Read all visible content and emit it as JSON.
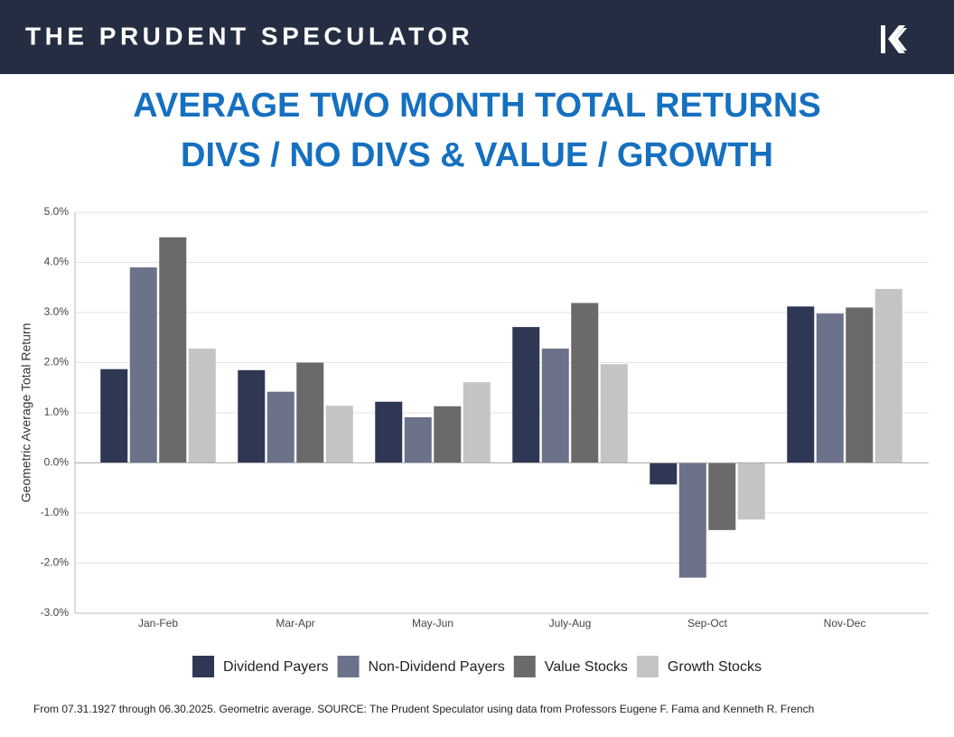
{
  "header": {
    "title": "THE PRUDENT SPECULATOR"
  },
  "chart_data": {
    "type": "bar",
    "title": [
      "AVERAGE TWO MONTH TOTAL RETURNS",
      "DIVS / NO DIVS & VALUE / GROWTH"
    ],
    "y_label": "Geometric Average Total Return",
    "categories": [
      "Jan-Feb",
      "Mar-Apr",
      "May-Jun",
      "July-Aug",
      "Sep-Oct",
      "Nov-Dec"
    ],
    "series": [
      {
        "name": "Dividend Payers",
        "color": "#2e3754",
        "values": [
          1.87,
          1.85,
          1.22,
          2.71,
          -0.43,
          3.12
        ]
      },
      {
        "name": "Non-Dividend Payers",
        "color": "#6b7289",
        "values": [
          3.9,
          1.42,
          0.91,
          2.28,
          -2.29,
          2.98
        ]
      },
      {
        "name": "Value Stocks",
        "color": "#6a6a6a",
        "values": [
          4.5,
          2.0,
          1.13,
          3.19,
          -1.34,
          3.1
        ]
      },
      {
        "name": "Growth Stocks",
        "color": "#c4c4c4",
        "values": [
          2.28,
          1.14,
          1.61,
          1.97,
          -1.13,
          3.47
        ]
      }
    ],
    "ylim": [
      -3,
      5
    ],
    "yticks": [
      {
        "value": -3,
        "label": "-3.0%"
      },
      {
        "value": -2,
        "label": "-2.0%"
      },
      {
        "value": -1,
        "label": "-1.0%"
      },
      {
        "value": 0,
        "label": "0.0%"
      },
      {
        "value": 1,
        "label": "1.0%"
      },
      {
        "value": 2,
        "label": "2.0%"
      },
      {
        "value": 3,
        "label": "3.0%"
      },
      {
        "value": 4,
        "label": "4.0%"
      },
      {
        "value": 5,
        "label": "5.0%"
      }
    ],
    "grid": true
  },
  "footnote": "From 07.31.1927 through 06.30.2025. Geometric average. SOURCE: The Prudent Speculator using data from Professors Eugene F. Fama and Kenneth R. French"
}
